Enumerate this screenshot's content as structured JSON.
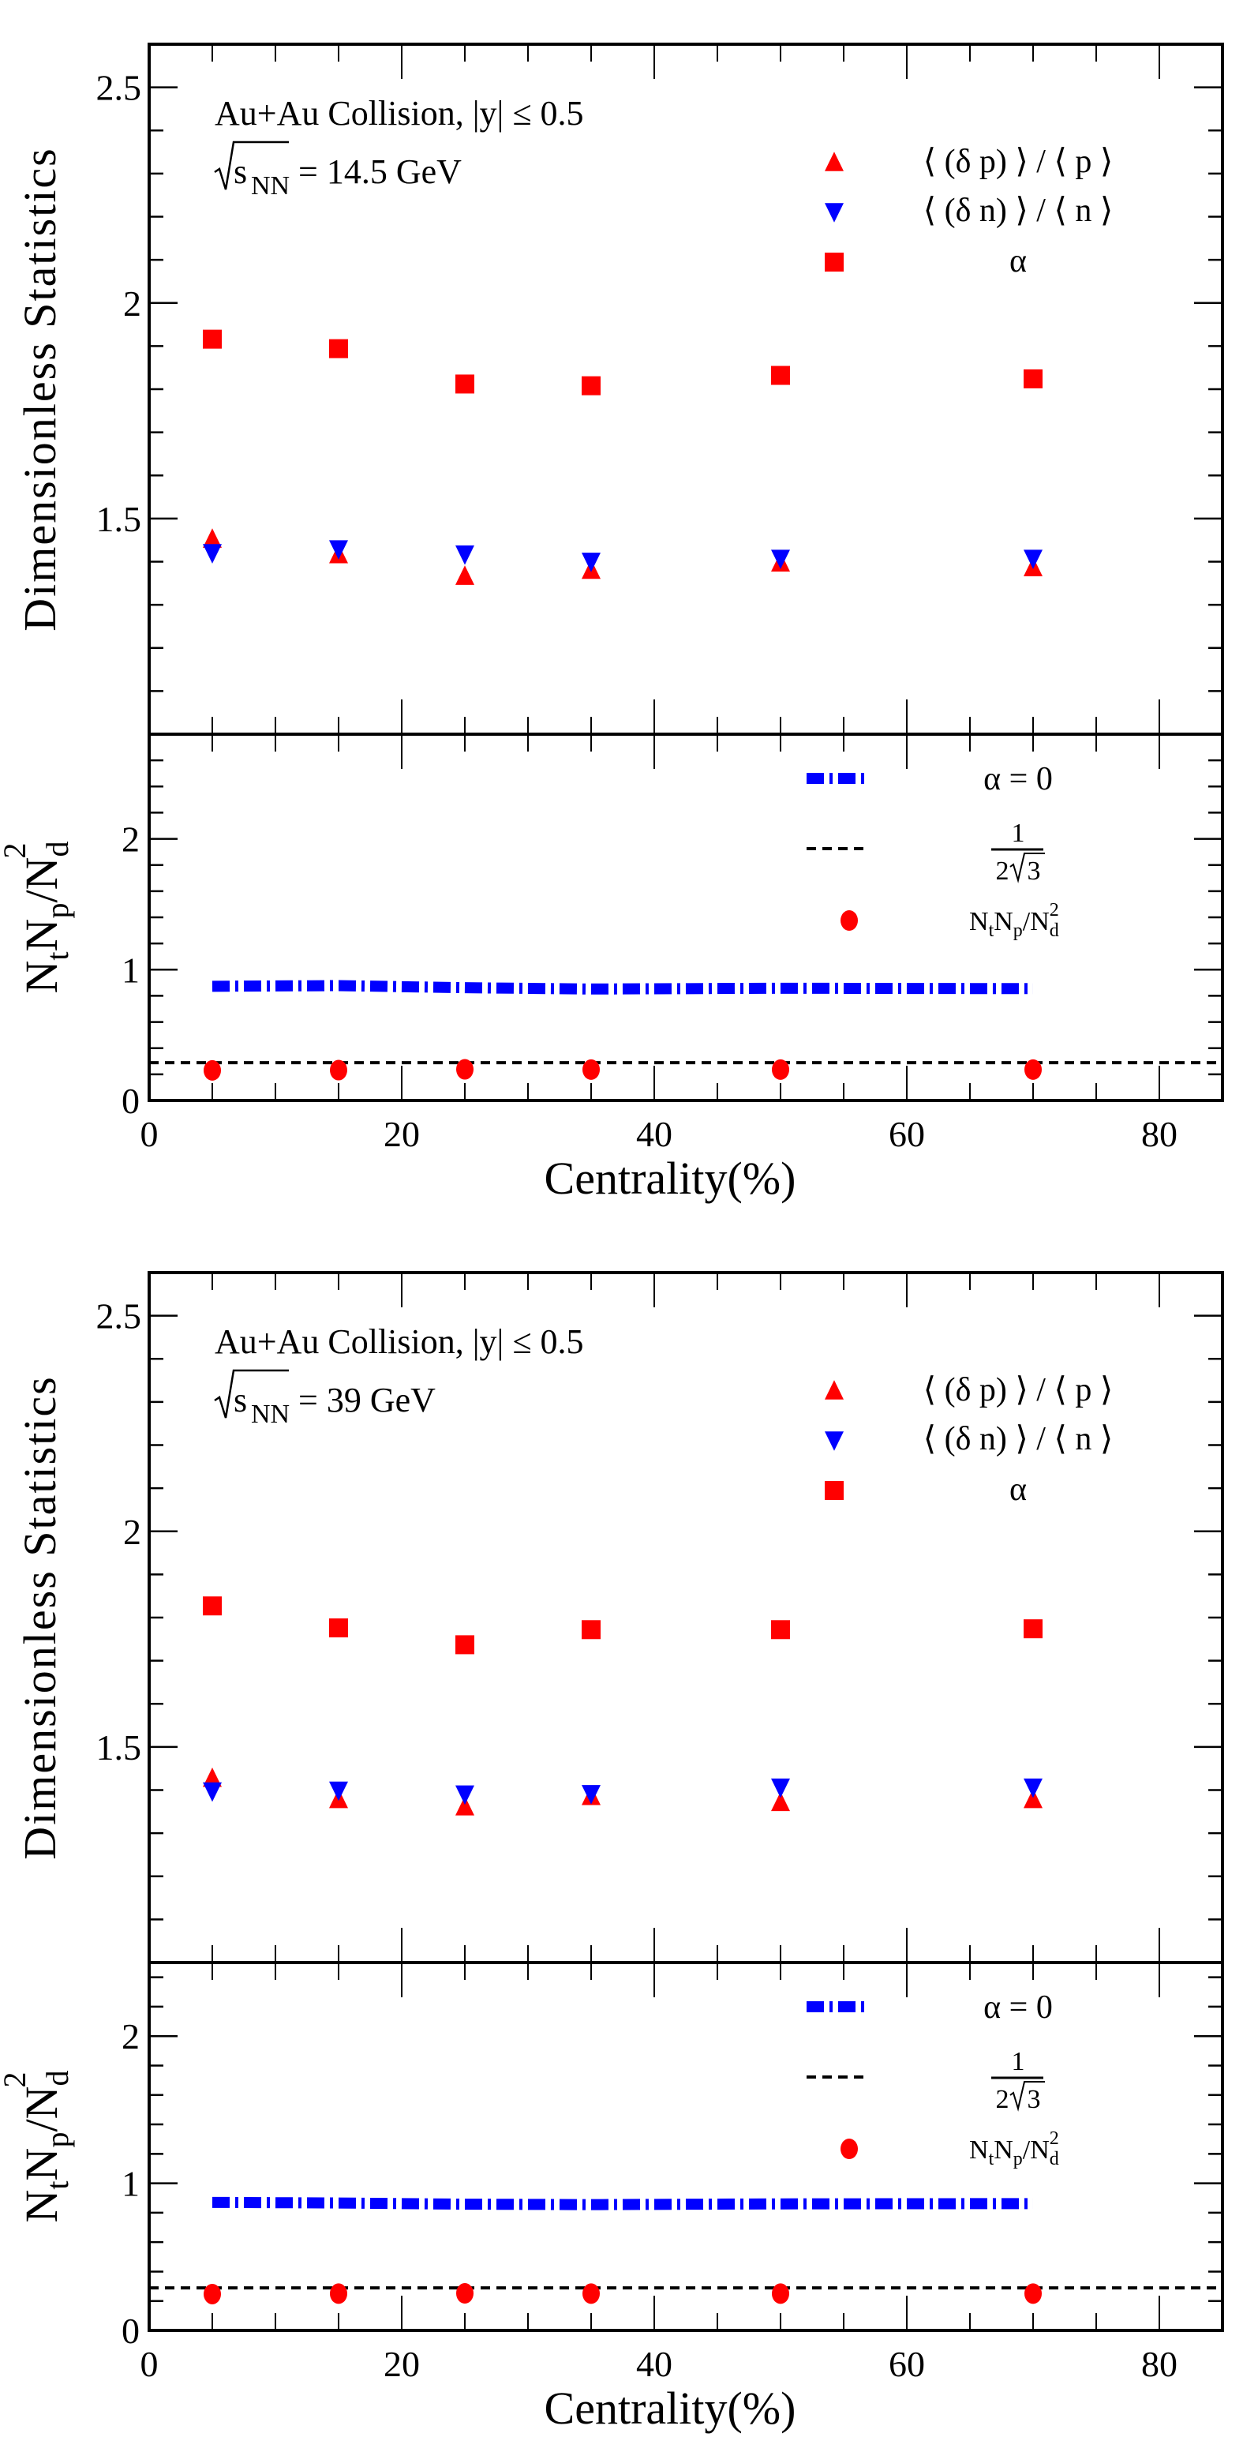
{
  "figure": {
    "panels_count": 2
  },
  "chart_data": [
    {
      "type": "scatter",
      "panel": "top",
      "annotation": {
        "system": "Au+Au Collision, |y| ≤ 0.5",
        "energy_prefix": "s",
        "energy_sub": "NN",
        "energy_value": "= 14.5 GeV"
      },
      "xlabel": "Centrality(%)",
      "xlim": [
        0,
        85
      ],
      "x_ticks": [
        0,
        20,
        40,
        60,
        80
      ],
      "x_tick_labels": [
        "0",
        "20",
        "40",
        "60",
        "80"
      ],
      "upper": {
        "ylabel": "Dimensionless Statistics",
        "ylim": [
          1.0,
          2.6
        ],
        "y_ticks": [
          1.5,
          2.0,
          2.5
        ],
        "y_tick_labels": [
          "1.5",
          "2",
          "2.5"
        ],
        "legend_position": "top-right",
        "series": [
          {
            "name": "⟨(δp)⟩/⟨p⟩",
            "marker": "triangle-up",
            "color": "#ff0000",
            "x": [
              5,
              15,
              25,
              35,
              50,
              70
            ],
            "y": [
              1.452,
              1.416,
              1.366,
              1.38,
              1.397,
              1.386
            ]
          },
          {
            "name": "⟨(δn)⟩/⟨n⟩",
            "marker": "triangle-down",
            "color": "#0000ff",
            "x": [
              5,
              15,
              25,
              35,
              50,
              70
            ],
            "y": [
              1.421,
              1.43,
              1.418,
              1.401,
              1.408,
              1.408
            ]
          },
          {
            "name": "α",
            "marker": "square",
            "color": "#ff0000",
            "x": [
              5,
              15,
              25,
              35,
              50,
              70
            ],
            "y": [
              1.916,
              1.894,
              1.812,
              1.808,
              1.832,
              1.824
            ]
          }
        ],
        "legend": [
          {
            "label_parts": [
              "⟨ (δ p) ⟩ / ⟨ p ⟩"
            ],
            "marker": "triangle-up",
            "color": "#ff0000"
          },
          {
            "label_parts": [
              "⟨ (δ n) ⟩ / ⟨ n ⟩"
            ],
            "marker": "triangle-down",
            "color": "#0000ff"
          },
          {
            "label_parts": [
              "α"
            ],
            "marker": "square",
            "color": "#ff0000"
          }
        ]
      },
      "lower": {
        "ylabel_main": "N",
        "ylabel_text": "NtNp/Nd²",
        "ylim": [
          0,
          2.8
        ],
        "y_ticks": [
          0,
          1,
          2
        ],
        "y_tick_labels": [
          "0",
          "1",
          "2"
        ],
        "legend_position": "top-right",
        "series": [
          {
            "name": "α = 0",
            "type": "line",
            "style": "dash-dot",
            "color": "#0000ff",
            "x": [
              5,
              15,
              25,
              35,
              50,
              70
            ],
            "y": [
              0.873,
              0.878,
              0.862,
              0.852,
              0.858,
              0.855
            ]
          },
          {
            "name": "1/(2√3)",
            "type": "hline",
            "style": "dashed",
            "color": "#000000",
            "y": 0.2887
          },
          {
            "name": "NtNp/Nd²",
            "marker": "circle",
            "color": "#ff0000",
            "x": [
              5,
              15,
              25,
              35,
              50,
              70
            ],
            "y": [
              0.23,
              0.232,
              0.238,
              0.236,
              0.236,
              0.236
            ]
          }
        ],
        "legend": {
          "alpha0": "α = 0",
          "frac_num": "1",
          "frac_den_2": "2",
          "frac_den_3": "3",
          "ratio_N": "N",
          "ratio_t": "t",
          "ratio_p": "p",
          "ratio_slash": "/N",
          "ratio_d": "d",
          "ratio_sup": "2"
        }
      }
    },
    {
      "type": "scatter",
      "panel": "bottom",
      "annotation": {
        "system": "Au+Au Collision, |y| ≤ 0.5",
        "energy_prefix": "s",
        "energy_sub": "NN",
        "energy_value": "= 39 GeV"
      },
      "xlabel": "Centrality(%)",
      "xlim": [
        0,
        85
      ],
      "x_ticks": [
        0,
        20,
        40,
        60,
        80
      ],
      "x_tick_labels": [
        "0",
        "20",
        "40",
        "60",
        "80"
      ],
      "upper": {
        "ylabel": "Dimensionless Statistics",
        "ylim": [
          1.0,
          2.6
        ],
        "y_ticks": [
          1.5,
          2.0,
          2.5
        ],
        "y_tick_labels": [
          "1.5",
          "2",
          "2.5"
        ],
        "legend_position": "top-right",
        "series": [
          {
            "name": "⟨(δp)⟩/⟨p⟩",
            "marker": "triangle-up",
            "color": "#ff0000",
            "x": [
              5,
              15,
              25,
              35,
              50,
              70
            ],
            "y": [
              1.427,
              1.378,
              1.361,
              1.385,
              1.371,
              1.378
            ]
          },
          {
            "name": "⟨(δn)⟩/⟨n⟩",
            "marker": "triangle-down",
            "color": "#0000ff",
            "x": [
              5,
              15,
              25,
              35,
              50,
              70
            ],
            "y": [
              1.398,
              1.4,
              1.391,
              1.392,
              1.407,
              1.407
            ]
          },
          {
            "name": "α",
            "marker": "square",
            "color": "#ff0000",
            "x": [
              5,
              15,
              25,
              35,
              50,
              70
            ],
            "y": [
              1.827,
              1.776,
              1.737,
              1.772,
              1.772,
              1.774
            ]
          }
        ],
        "legend": [
          {
            "label_parts": [
              "⟨ (δ p) ⟩ / ⟨ p ⟩"
            ],
            "marker": "triangle-up",
            "color": "#ff0000"
          },
          {
            "label_parts": [
              "⟨ (δ n) ⟩ / ⟨ n ⟩"
            ],
            "marker": "triangle-down",
            "color": "#0000ff"
          },
          {
            "label_parts": [
              "α"
            ],
            "marker": "square",
            "color": "#ff0000"
          }
        ]
      },
      "lower": {
        "ylabel_main": "N",
        "ylabel_text": "NtNp/Nd²",
        "ylim": [
          0,
          2.5
        ],
        "y_ticks": [
          0,
          1,
          2
        ],
        "y_tick_labels": [
          "0",
          "1",
          "2"
        ],
        "legend_position": "top-right",
        "series": [
          {
            "name": "α = 0",
            "type": "line",
            "style": "dash-dot",
            "color": "#0000ff",
            "x": [
              5,
              15,
              25,
              35,
              50,
              70
            ],
            "y": [
              0.87,
              0.866,
              0.858,
              0.855,
              0.86,
              0.862
            ]
          },
          {
            "name": "1/(2√3)",
            "type": "hline",
            "style": "dashed",
            "color": "#000000",
            "y": 0.2887
          },
          {
            "name": "NtNp/Nd²",
            "marker": "circle",
            "color": "#ff0000",
            "x": [
              5,
              15,
              25,
              35,
              50,
              70
            ],
            "y": [
              0.247,
              0.25,
              0.252,
              0.25,
              0.25,
              0.25
            ]
          }
        ],
        "legend": {
          "alpha0": "α = 0",
          "frac_num": "1",
          "frac_den_2": "2",
          "frac_den_3": "3",
          "ratio_N": "N",
          "ratio_t": "t",
          "ratio_p": "p",
          "ratio_slash": "/N",
          "ratio_d": "d",
          "ratio_sup": "2"
        }
      }
    }
  ]
}
